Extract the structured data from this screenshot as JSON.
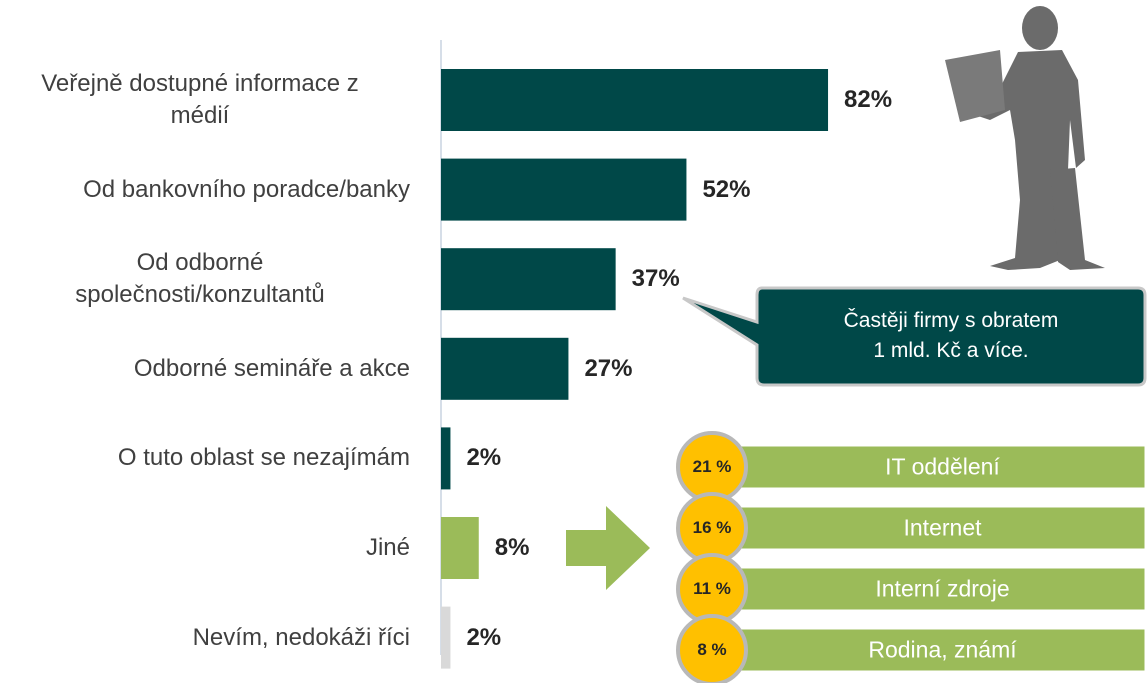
{
  "chart_data": {
    "type": "bar",
    "orientation": "horizontal",
    "categories": [
      "Veřejně dostupné informace z\nmédií",
      "Od bankovního poradce/banky",
      "Od odborné\nspolečnosti/konzultantů",
      "Odborné semináře a akce",
      "O tuto oblast se nezajímám",
      "Jiné",
      "Nevím, nedokáži říci"
    ],
    "values": [
      82,
      52,
      37,
      27,
      2,
      8,
      2
    ],
    "value_labels": [
      "82%",
      "52%",
      "37%",
      "27%",
      "2%",
      "8%",
      "2%"
    ],
    "colors": [
      "#004848",
      "#004848",
      "#004848",
      "#004848",
      "#004848",
      "#9bbb59",
      "#d9d9d9"
    ],
    "xlim": [
      0,
      100
    ],
    "callout": {
      "lines": [
        "Častěji firmy s obratem",
        "1 mld. Kč a více."
      ]
    },
    "breakdown": [
      {
        "share": "21 %",
        "label": "IT oddělení"
      },
      {
        "share": "16 %",
        "label": "Internet"
      },
      {
        "share": "11 %",
        "label": "Interní zdroje"
      },
      {
        "share": "8 %",
        "label": "Rodina, známí"
      }
    ]
  }
}
